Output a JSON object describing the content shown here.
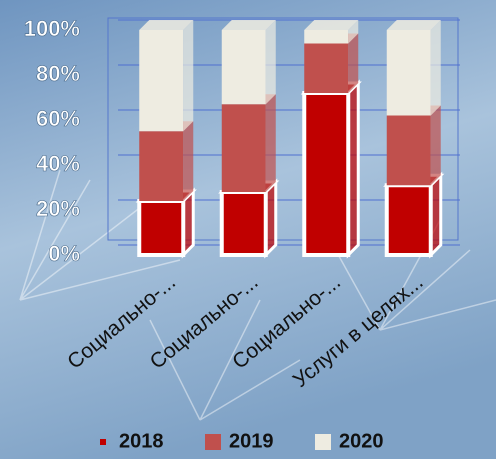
{
  "chart_data": {
    "type": "bar",
    "stacked": true,
    "categories": [
      "Социально-...",
      "Социально-...",
      "Социально-...",
      "Услуги в целях..."
    ],
    "series": [
      {
        "name": "2018",
        "color": "#c00000",
        "values": [
          24,
          28,
          72,
          31
        ]
      },
      {
        "name": "2019",
        "color": "#c0504d",
        "values": [
          31,
          39,
          22,
          31
        ]
      },
      {
        "name": "2020",
        "color": "#eeece1",
        "values": [
          45,
          33,
          6,
          38
        ]
      }
    ],
    "ylim": [
      0,
      100
    ],
    "yticks": [
      {
        "value": 0,
        "label": "0%"
      },
      {
        "value": 20,
        "label": "20%"
      },
      {
        "value": 40,
        "label": "40%"
      },
      {
        "value": 60,
        "label": "60%"
      },
      {
        "value": 80,
        "label": "80%"
      },
      {
        "value": 100,
        "label": "100%"
      }
    ],
    "grid": true,
    "legend": "bottom"
  }
}
